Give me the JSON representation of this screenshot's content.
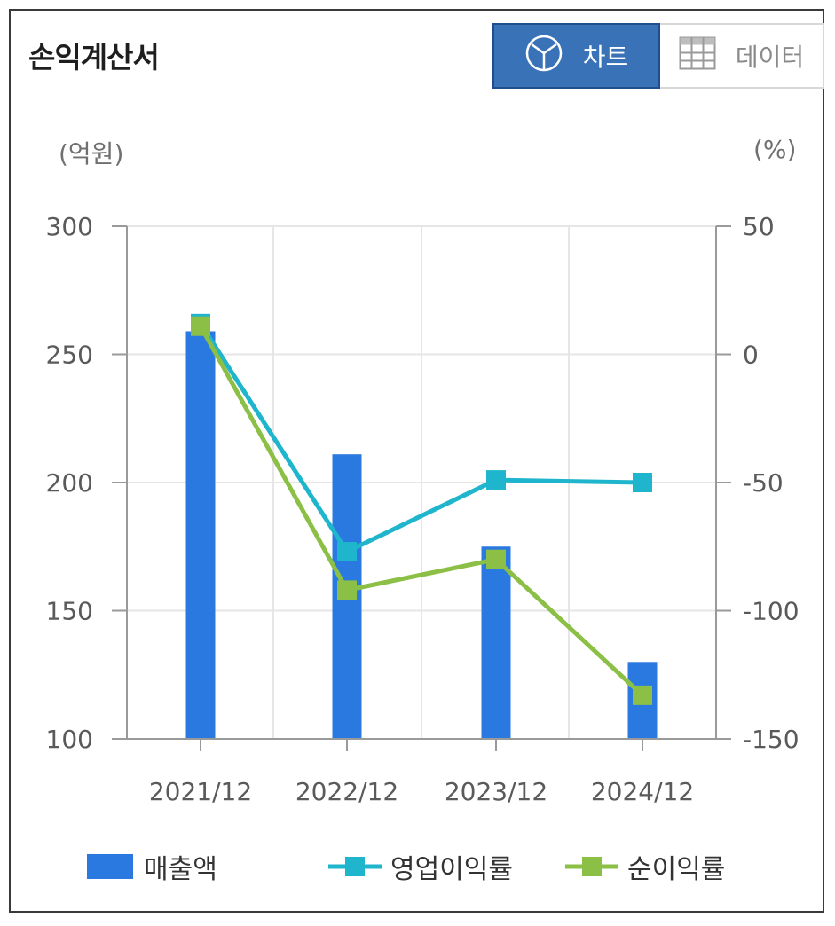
{
  "title": "손익계산서",
  "toggle": {
    "chart_label": "차트",
    "data_label": "데이터"
  },
  "units": {
    "left": "(억원)",
    "right": "(%)"
  },
  "colors": {
    "bar": "#2a79e0",
    "op_margin": "#1fb5cc",
    "net_margin": "#8bbf46",
    "accent": "#3a72b8"
  },
  "icons": {
    "chart": "pie-chart-icon",
    "data": "table-grid-icon"
  },
  "chart_data": {
    "type": "bar",
    "categories": [
      "2021/12",
      "2022/12",
      "2023/12",
      "2024/12"
    ],
    "y_left": {
      "ticks": [
        300,
        250,
        200,
        150,
        100
      ],
      "min": 100,
      "max": 300
    },
    "y_right": {
      "ticks": [
        50,
        0,
        -50,
        -100,
        -150
      ],
      "min": -150,
      "max": 50
    },
    "series": [
      {
        "name": "매출액",
        "type": "bar",
        "axis": "left",
        "values": [
          259,
          211,
          175,
          130
        ]
      },
      {
        "name": "영업이익률",
        "type": "line",
        "axis": "right",
        "values": [
          12,
          -77,
          -49,
          -50
        ]
      },
      {
        "name": "순이익률",
        "type": "line",
        "axis": "right",
        "values": [
          11,
          -92,
          -80,
          -133
        ]
      }
    ],
    "grid": true,
    "legend": "bottom"
  }
}
